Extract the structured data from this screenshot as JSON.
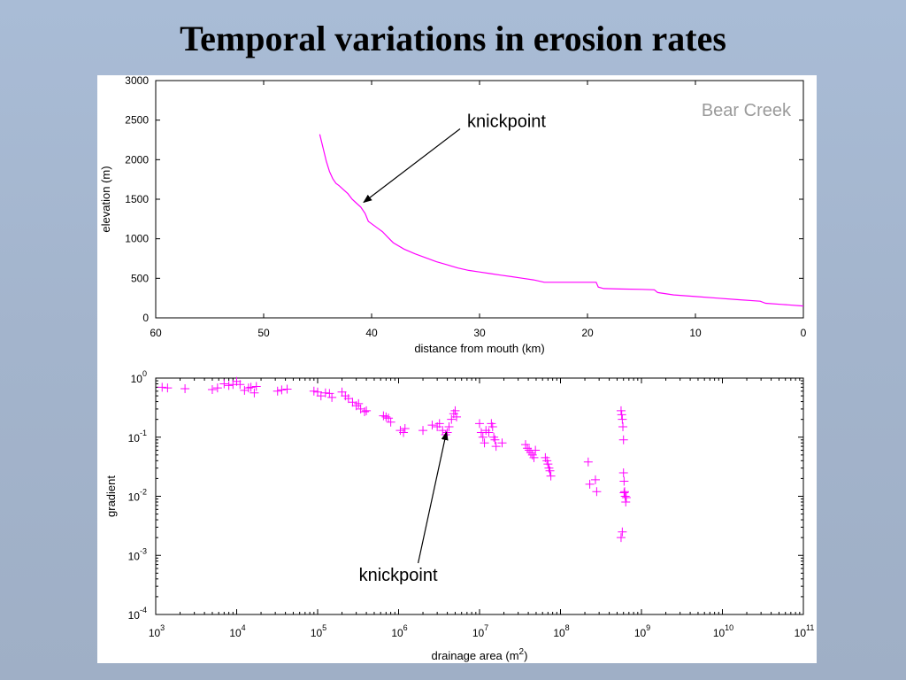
{
  "slide": {
    "title": "Temporal variations in erosion rates"
  },
  "colors": {
    "series": "#ff00ff",
    "axis": "#000000",
    "label_gray": "#9a9a9a",
    "panel_bg": "#ffffff"
  },
  "chart_data": [
    {
      "type": "line",
      "title": "",
      "label_text": "Bear Creek",
      "xlabel": "distance from mouth (km)",
      "ylabel": "elevation (m)",
      "xlim": [
        60,
        0
      ],
      "ylim": [
        0,
        3000
      ],
      "x_reversed": true,
      "xticks": [
        60,
        50,
        40,
        30,
        20,
        10,
        0
      ],
      "yticks": [
        0,
        500,
        1000,
        1500,
        2000,
        2500,
        3000
      ],
      "grid": false,
      "series": [
        {
          "color": "#ff00ff",
          "x": [
            44.8,
            44.5,
            44.2,
            43.9,
            43.6,
            43.3,
            43.0,
            42.6,
            42.2,
            41.8,
            41.4,
            41.0,
            40.6,
            40.3,
            40.0,
            39.5,
            39.0,
            38.5,
            38.0,
            37.0,
            36.0,
            35.0,
            34.0,
            33.0,
            32.0,
            31.0,
            30.0,
            29.0,
            28.0,
            27.0,
            26.0,
            25.0,
            24.0,
            23.0,
            22.0,
            21.0,
            20.0,
            19.2,
            19.0,
            18.5,
            17.0,
            15.0,
            13.8,
            13.5,
            12.0,
            10.0,
            8.0,
            6.0,
            4.0,
            3.5,
            2.0,
            0.0
          ],
          "y": [
            2320,
            2150,
            1980,
            1850,
            1760,
            1700,
            1670,
            1620,
            1570,
            1500,
            1450,
            1400,
            1320,
            1220,
            1190,
            1140,
            1090,
            1020,
            950,
            870,
            810,
            760,
            710,
            670,
            630,
            600,
            580,
            560,
            540,
            520,
            500,
            480,
            450,
            450,
            450,
            450,
            450,
            450,
            390,
            370,
            365,
            360,
            355,
            320,
            290,
            270,
            250,
            230,
            210,
            185,
            170,
            150
          ]
        }
      ],
      "annotations": [
        {
          "text": "knickpoint",
          "x": 40.9,
          "y": 1450
        }
      ]
    },
    {
      "type": "scatter",
      "title": "",
      "xlabel": "drainage area (m",
      "xlabel_superscript": "2",
      "xlabel_suffix": ")",
      "ylabel": "gradient",
      "x_scale": "log",
      "y_scale": "log",
      "xlim": [
        1000,
        100000000000
      ],
      "ylim": [
        0.0001,
        1
      ],
      "x_tick_exponents": [
        3,
        4,
        5,
        6,
        7,
        8,
        9,
        10,
        11
      ],
      "y_tick_exponents": [
        -4,
        -3,
        -2,
        -1,
        0
      ],
      "tick_base": "10",
      "grid": false,
      "marker": "+",
      "series": [
        {
          "color": "#ff00ff",
          "points": [
            [
              1200,
              0.7
            ],
            [
              1400,
              0.68
            ],
            [
              2300,
              0.66
            ],
            [
              5000,
              0.64
            ],
            [
              5800,
              0.68
            ],
            [
              7000,
              0.8
            ],
            [
              8000,
              0.75
            ],
            [
              9000,
              0.78
            ],
            [
              10000,
              0.88
            ],
            [
              11000,
              0.78
            ],
            [
              12500,
              0.62
            ],
            [
              14000,
              0.68
            ],
            [
              15000,
              0.7
            ],
            [
              16500,
              0.56
            ],
            [
              17500,
              0.72
            ],
            [
              32000,
              0.6
            ],
            [
              36000,
              0.63
            ],
            [
              42000,
              0.65
            ],
            [
              90000,
              0.6
            ],
            [
              100000,
              0.58
            ],
            [
              110000,
              0.5
            ],
            [
              125000,
              0.56
            ],
            [
              140000,
              0.55
            ],
            [
              150000,
              0.47
            ],
            [
              200000,
              0.58
            ],
            [
              220000,
              0.5
            ],
            [
              240000,
              0.45
            ],
            [
              270000,
              0.39
            ],
            [
              300000,
              0.34
            ],
            [
              320000,
              0.37
            ],
            [
              340000,
              0.3
            ],
            [
              380000,
              0.27
            ],
            [
              400000,
              0.28
            ],
            [
              650000,
              0.23
            ],
            [
              700000,
              0.22
            ],
            [
              750000,
              0.21
            ],
            [
              800000,
              0.18
            ],
            [
              1050000,
              0.13
            ],
            [
              1150000,
              0.12
            ],
            [
              1200000,
              0.14
            ],
            [
              2000000,
              0.13
            ],
            [
              2600000,
              0.16
            ],
            [
              3000000,
              0.15
            ],
            [
              3200000,
              0.17
            ],
            [
              3500000,
              0.13
            ],
            [
              3800000,
              0.11
            ],
            [
              4000000,
              0.12
            ],
            [
              4200000,
              0.15
            ],
            [
              4500000,
              0.2
            ],
            [
              4800000,
              0.25
            ],
            [
              5000000,
              0.28
            ],
            [
              5200000,
              0.22
            ],
            [
              10000000,
              0.17
            ],
            [
              10500000,
              0.12
            ],
            [
              11000000,
              0.1
            ],
            [
              11500000,
              0.08
            ],
            [
              12000000,
              0.13
            ],
            [
              13000000,
              0.12
            ],
            [
              14000000,
              0.17
            ],
            [
              14500000,
              0.15
            ],
            [
              15000000,
              0.1
            ],
            [
              15500000,
              0.09
            ],
            [
              16000000,
              0.07
            ],
            [
              19000000,
              0.08
            ],
            [
              37000000,
              0.075
            ],
            [
              39000000,
              0.065
            ],
            [
              41000000,
              0.06
            ],
            [
              43000000,
              0.055
            ],
            [
              45000000,
              0.05
            ],
            [
              47000000,
              0.045
            ],
            [
              49000000,
              0.06
            ],
            [
              65000000,
              0.045
            ],
            [
              68000000,
              0.04
            ],
            [
              70000000,
              0.035
            ],
            [
              72000000,
              0.03
            ],
            [
              74000000,
              0.027
            ],
            [
              76000000,
              0.022
            ],
            [
              220000000,
              0.038
            ],
            [
              230000000,
              0.016
            ],
            [
              270000000,
              0.019
            ],
            [
              280000000,
              0.012
            ],
            [
              560000000,
              0.28
            ],
            [
              570000000,
              0.24
            ],
            [
              580000000,
              0.2
            ],
            [
              590000000,
              0.15
            ],
            [
              600000000,
              0.09
            ],
            [
              600000000,
              0.025
            ],
            [
              610000000,
              0.018
            ],
            [
              620000000,
              0.012
            ],
            [
              630000000,
              0.01
            ],
            [
              640000000,
              0.008
            ],
            [
              650000000,
              0.0095
            ],
            [
              560000000,
              0.002
            ],
            [
              580000000,
              0.0025
            ],
            [
              610000000,
              0.0115
            ]
          ]
        }
      ],
      "annotations": [
        {
          "text": "knickpoint",
          "x": 4000000,
          "y": 0.14
        }
      ]
    }
  ]
}
